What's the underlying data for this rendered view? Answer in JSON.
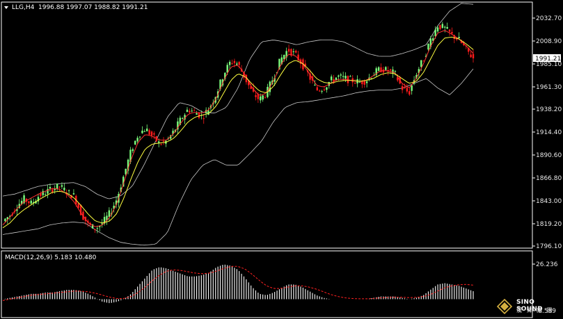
{
  "header": {
    "symbol": "LLG,H4",
    "ohlc": "1996.88 1997.07 1988.82 1991.21"
  },
  "current_price_label": "1991.21",
  "macd_header": "MACD(12,26,9) 5.183 10.480",
  "logo": {
    "name": "SINO SOUND",
    "sub": "漢 聲 集 團"
  },
  "colors": {
    "background": "#000000",
    "bull": "#7CFC7C",
    "bear": "#FF1A1A",
    "band": "#C8C8C8",
    "ma_fast": "#FF3030",
    "ma_slow": "#FFFF40",
    "macd_hist": "#FFFFFF",
    "macd_signal": "#FF2020",
    "axis": "#FFFFFF"
  },
  "chart_data": [
    {
      "type": "candlestick",
      "price_axis_ticks": [
        "2032.70",
        "2008.90",
        "1985.10",
        "1961.30",
        "1938.20",
        "1914.40",
        "1890.60",
        "1866.80",
        "1843.00",
        "1819.20",
        "1796.10"
      ],
      "ylim": [
        1796.1,
        2032.7
      ],
      "last_price": 1991.21,
      "close_path": [
        1822,
        1828,
        1838,
        1845,
        1840,
        1848,
        1852,
        1856,
        1858,
        1852,
        1848,
        1830,
        1818,
        1814,
        1820,
        1830,
        1845,
        1870,
        1895,
        1912,
        1918,
        1910,
        1902,
        1905,
        1915,
        1928,
        1938,
        1935,
        1930,
        1940,
        1955,
        1975,
        1988,
        1985,
        1970,
        1955,
        1948,
        1955,
        1972,
        1990,
        2000,
        1995,
        1985,
        1972,
        1958,
        1960,
        1968,
        1972,
        1970,
        1968,
        1966,
        1968,
        1975,
        1980,
        1978,
        1975,
        1960,
        1955,
        1975,
        1990,
        2010,
        2025,
        2022,
        2015,
        2010,
        2000,
        1991
      ],
      "upper_band_path": [
        1848,
        1850,
        1854,
        1858,
        1860,
        1861,
        1862,
        1858,
        1850,
        1845,
        1848,
        1858,
        1880,
        1905,
        1930,
        1945,
        1942,
        1935,
        1934,
        1940,
        1960,
        1990,
        2008,
        2010,
        2008,
        2005,
        2008,
        2010,
        2010,
        2008,
        2002,
        1996,
        1993,
        1993,
        1996,
        2000,
        2005,
        2025,
        2040,
        2048,
        2047
      ],
      "lower_band_path": [
        1808,
        1810,
        1812,
        1814,
        1818,
        1820,
        1821,
        1820,
        1812,
        1805,
        1800,
        1798,
        1797,
        1798,
        1810,
        1840,
        1865,
        1880,
        1886,
        1880,
        1880,
        1892,
        1905,
        1925,
        1940,
        1945,
        1946,
        1948,
        1950,
        1952,
        1955,
        1957,
        1958,
        1958,
        1960,
        1965,
        1970,
        1960,
        1953,
        1965,
        1980
      ],
      "ma_fast_path": [
        1818,
        1826,
        1835,
        1842,
        1846,
        1850,
        1853,
        1856,
        1855,
        1850,
        1842,
        1830,
        1820,
        1816,
        1818,
        1826,
        1840,
        1862,
        1886,
        1904,
        1912,
        1910,
        1906,
        1906,
        1913,
        1924,
        1933,
        1935,
        1934,
        1938,
        1950,
        1968,
        1982,
        1984,
        1974,
        1960,
        1952,
        1955,
        1968,
        1984,
        1995,
        1994,
        1986,
        1975,
        1963,
        1961,
        1965,
        1969,
        1969,
        1968,
        1967,
        1968,
        1973,
        1978,
        1978,
        1976,
        1965,
        1960,
        1970,
        1985,
        2003,
        2017,
        2020,
        2016,
        2011,
        2004,
        1996
      ],
      "ma_slow_path": [
        1815,
        1820,
        1828,
        1834,
        1839,
        1844,
        1848,
        1852,
        1853,
        1851,
        1846,
        1838,
        1829,
        1822,
        1820,
        1822,
        1830,
        1846,
        1866,
        1884,
        1897,
        1902,
        1903,
        1904,
        1908,
        1916,
        1925,
        1930,
        1932,
        1934,
        1942,
        1955,
        1968,
        1975,
        1972,
        1964,
        1957,
        1955,
        1962,
        1974,
        1985,
        1989,
        1986,
        1979,
        1970,
        1966,
        1965,
        1967,
        1968,
        1968,
        1967,
        1968,
        1970,
        1974,
        1976,
        1975,
        1970,
        1965,
        1967,
        1976,
        1990,
        2004,
        2012,
        2013,
        2011,
        2006,
        2000
      ]
    },
    {
      "type": "bar",
      "title": "MACD(12,26,9)",
      "macd": 5.183,
      "signal": 10.48,
      "axis_ticks": [
        "26.236",
        "-8.589"
      ],
      "ylim": [
        -8.589,
        26.236
      ],
      "histogram_path": [
        0,
        1,
        2,
        3,
        4,
        4,
        5,
        5,
        6,
        7,
        7,
        6,
        4,
        1,
        -2,
        -3,
        -2,
        0,
        4,
        10,
        16,
        22,
        24,
        23,
        21,
        19,
        17,
        17,
        18,
        20,
        24,
        26,
        25,
        22,
        16,
        9,
        4,
        3,
        5,
        8,
        11,
        11,
        9,
        6,
        3,
        1,
        0,
        0,
        0,
        0,
        0,
        0,
        1,
        2,
        2,
        2,
        1,
        0,
        1,
        3,
        7,
        11,
        12,
        11,
        10,
        8,
        6
      ],
      "signal_path": [
        -1,
        0,
        1,
        2,
        3,
        3.5,
        4,
        4.5,
        5,
        5.5,
        6,
        6,
        5.5,
        4.5,
        3,
        1.5,
        0.5,
        0.5,
        2,
        5,
        9,
        14,
        18,
        21,
        22,
        21.5,
        20.5,
        19.5,
        19,
        19.5,
        21,
        23,
        24.5,
        24.5,
        22.5,
        18.5,
        14,
        10,
        8,
        8,
        9,
        10,
        10,
        9,
        7.5,
        5.5,
        3.5,
        2,
        1,
        0.5,
        0.3,
        0.3,
        0.5,
        1,
        1.3,
        1.5,
        1.4,
        1.2,
        1.3,
        2,
        3.5,
        6,
        8.5,
        10,
        10.8,
        11,
        10.5
      ]
    }
  ]
}
